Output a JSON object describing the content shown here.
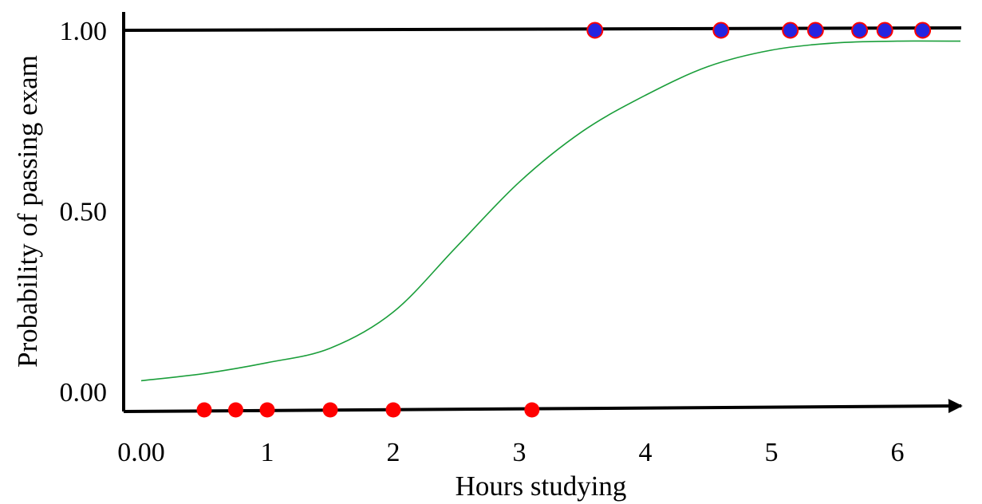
{
  "chart_data": {
    "type": "scatter",
    "title": "",
    "xlabel": "Hours studying",
    "ylabel": "Probability of passing exam",
    "xlim": [
      0,
      6.6
    ],
    "ylim": [
      0,
      1
    ],
    "x_ticks": [
      {
        "value": 0,
        "label": "0.00"
      },
      {
        "value": 1,
        "label": "1"
      },
      {
        "value": 2,
        "label": "2"
      },
      {
        "value": 3,
        "label": "3"
      },
      {
        "value": 4,
        "label": "4"
      },
      {
        "value": 5,
        "label": "5"
      },
      {
        "value": 6,
        "label": "6"
      }
    ],
    "y_ticks": [
      {
        "value": 0,
        "label": "0.00"
      },
      {
        "value": 0.5,
        "label": "0.50"
      },
      {
        "value": 1,
        "label": "1.00"
      }
    ],
    "grid": false,
    "legend": "none",
    "series": [
      {
        "kind": "points",
        "outcome": "fail",
        "color": "#ff0000",
        "x": [
          0.5,
          0.75,
          1.0,
          1.5,
          2.0,
          3.1
        ],
        "y": [
          0,
          0,
          0,
          0,
          0,
          0
        ]
      },
      {
        "kind": "points",
        "outcome": "pass",
        "color": "#2424e0",
        "edge_color": "#ff0000",
        "x": [
          3.6,
          4.6,
          5.15,
          5.35,
          5.7,
          5.9,
          6.2
        ],
        "y": [
          1,
          1,
          1,
          1,
          1,
          1,
          1
        ]
      },
      {
        "kind": "curve",
        "color": "#1a9e3a",
        "x": [
          0,
          0.5,
          1,
          1.5,
          2,
          2.5,
          3,
          3.5,
          4,
          4.5,
          5,
          5.5,
          6,
          6.5
        ],
        "y": [
          0.03,
          0.05,
          0.08,
          0.12,
          0.22,
          0.4,
          0.58,
          0.72,
          0.82,
          0.9,
          0.945,
          0.965,
          0.97,
          0.97
        ]
      }
    ]
  }
}
